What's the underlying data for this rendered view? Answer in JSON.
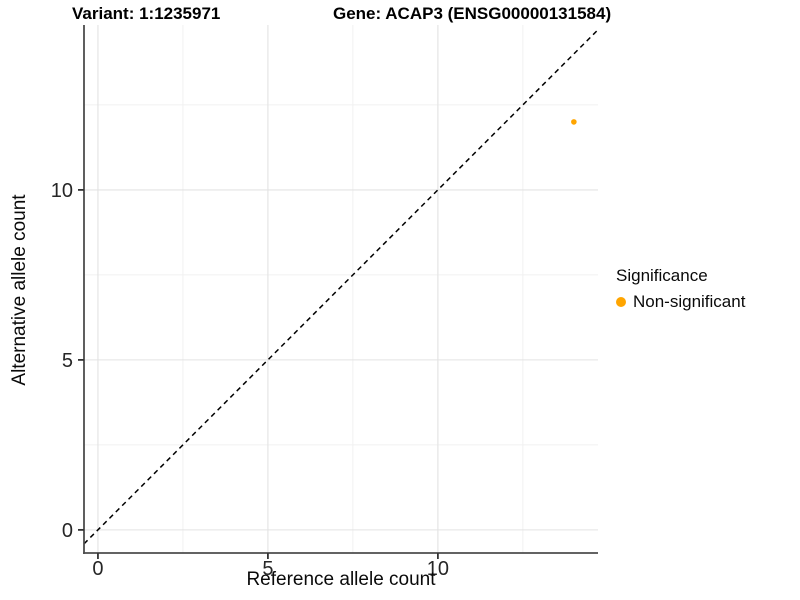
{
  "header": {
    "variant_title": "Variant: 1:1235971",
    "gene_title": "Gene: ACAP3 (ENSG00000131584)"
  },
  "chart_data": {
    "type": "scatter",
    "xlabel": "Reference allele count",
    "ylabel": "Alternative allele count",
    "xlim": [
      -0.41,
      14.71
    ],
    "ylim": [
      -0.68,
      14.85
    ],
    "x_major_ticks": [
      0,
      5,
      10
    ],
    "y_major_ticks": [
      0,
      5,
      10
    ],
    "x_minor_ticks": [
      2.5,
      7.5,
      12.5
    ],
    "y_minor_ticks": [
      2.5,
      7.5,
      12.5
    ],
    "grid": "major-and-minor",
    "points": [
      {
        "x": 14,
        "y": 12,
        "series": "Non-significant"
      }
    ],
    "identity_line": {
      "slope": 1,
      "intercept": 0,
      "style": "dashed",
      "color": "#000000"
    },
    "legend": {
      "title": "Significance",
      "position": "right",
      "items": [
        {
          "label": "Non-significant",
          "color": "#FFA500"
        }
      ]
    }
  },
  "colors": {
    "point": "#FFA500",
    "grid_major": "#E3E3E3",
    "grid_minor": "#F1F1F1",
    "axis_line": "#4D4D4D",
    "tick_mark": "#333333",
    "tick_text": "#262626"
  }
}
